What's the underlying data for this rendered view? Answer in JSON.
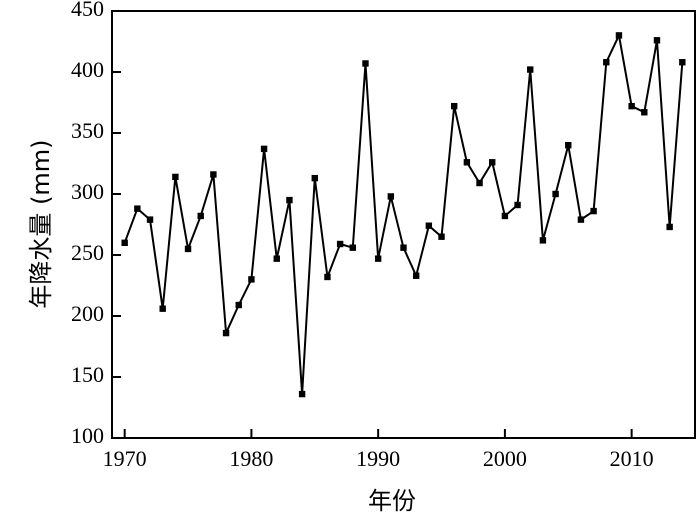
{
  "chart_data": {
    "type": "line",
    "title": "",
    "xlabel": "年份",
    "ylabel": "年降水量 (mm)",
    "xlim": [
      1969,
      2015
    ],
    "ylim": [
      100,
      450
    ],
    "x_ticks": [
      1970,
      1980,
      1990,
      2000,
      2010
    ],
    "y_ticks": [
      100,
      150,
      200,
      250,
      300,
      350,
      400,
      450
    ],
    "x_tick_labels": [
      "1970",
      "1980",
      "1990",
      "2000",
      "2010"
    ],
    "y_tick_labels": [
      "100",
      "150",
      "200",
      "250",
      "300",
      "350",
      "400",
      "450"
    ],
    "grid": false,
    "legend": "none",
    "marker": "square",
    "series": [
      {
        "color": "#000000",
        "x": [
          1970,
          1971,
          1972,
          1973,
          1974,
          1975,
          1976,
          1977,
          1978,
          1979,
          1980,
          1981,
          1982,
          1983,
          1984,
          1985,
          1986,
          1987,
          1988,
          1989,
          1990,
          1991,
          1992,
          1993,
          1994,
          1995,
          1996,
          1997,
          1998,
          1999,
          2000,
          2001,
          2002,
          2003,
          2004,
          2005,
          2006,
          2007,
          2008,
          2009,
          2010,
          2011,
          2012,
          2013,
          2014
        ],
        "y": [
          260,
          288,
          279,
          206,
          314,
          255,
          282,
          316,
          186,
          209,
          230,
          337,
          247,
          295,
          136,
          313,
          232,
          259,
          256,
          407,
          247,
          298,
          256,
          233,
          274,
          265,
          372,
          326,
          309,
          326,
          282,
          291,
          402,
          262,
          300,
          340,
          279,
          286,
          408,
          430,
          372,
          367,
          426,
          273,
          408
        ]
      }
    ]
  }
}
